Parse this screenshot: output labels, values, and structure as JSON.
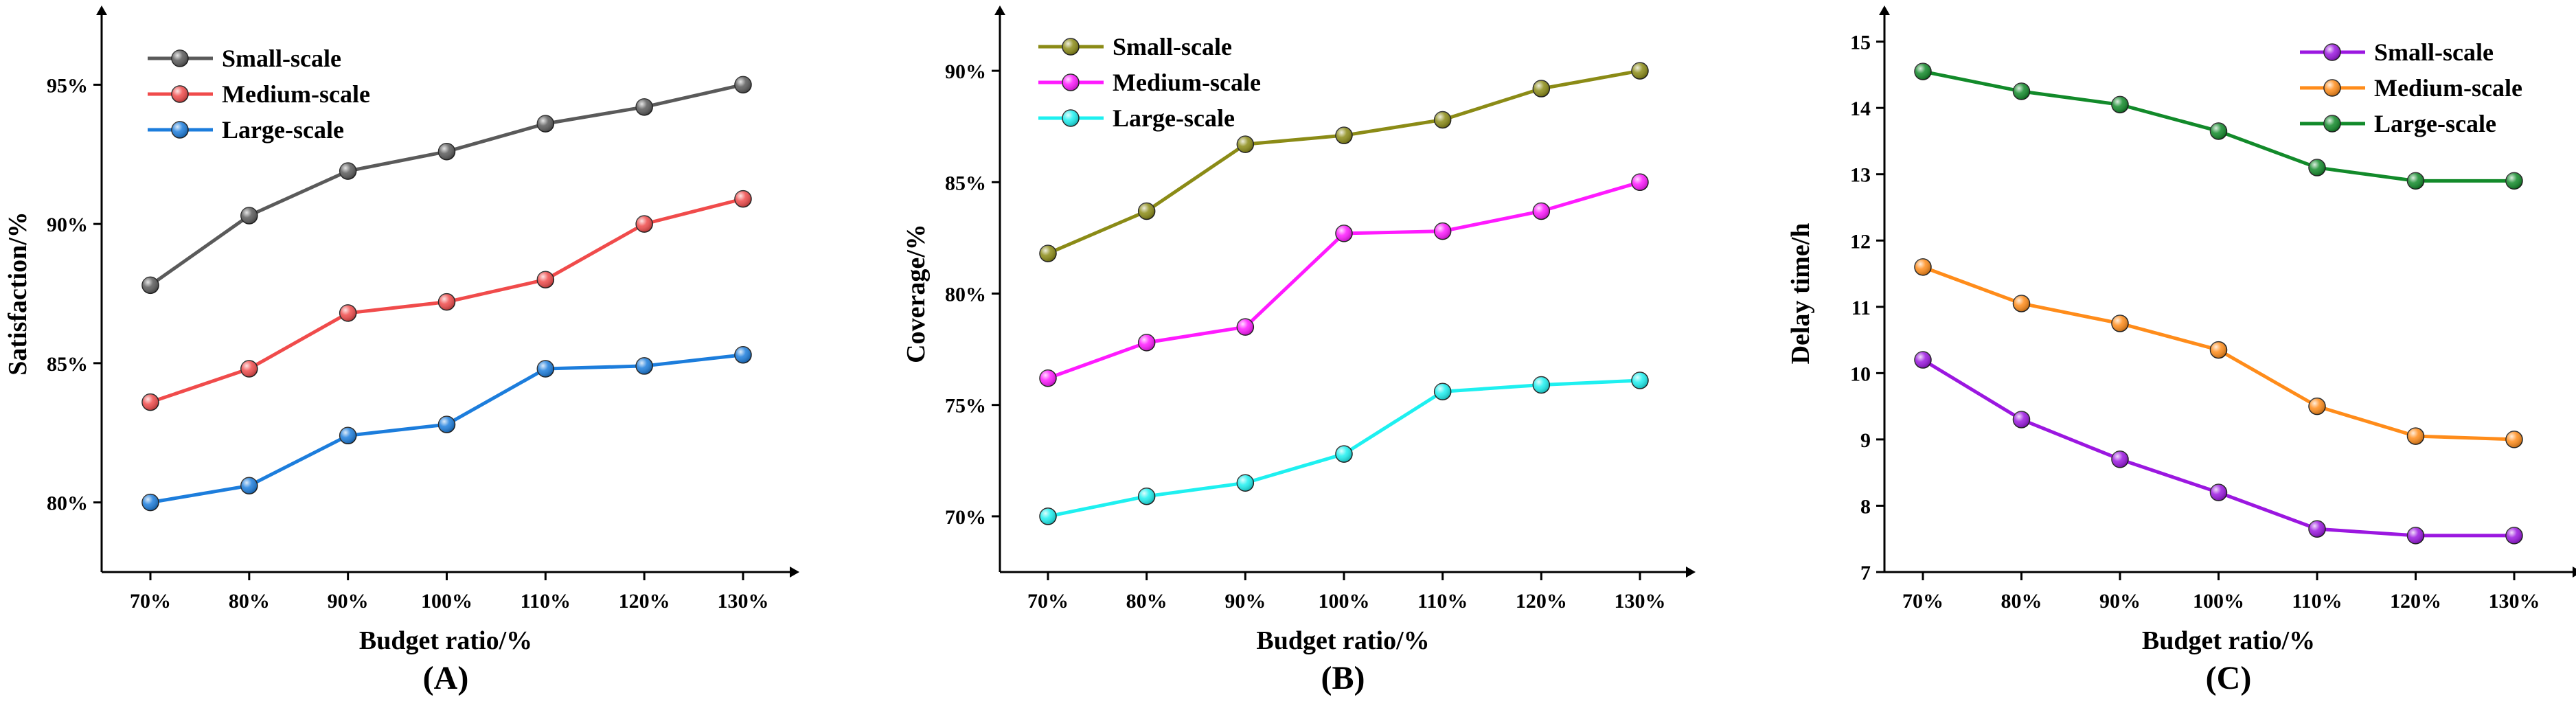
{
  "chart_data": [
    {
      "type": "line",
      "panel_label": "(A)",
      "xlabel": "Budget ratio/%",
      "ylabel": "Satisfaction/%",
      "categories": [
        "70%",
        "80%",
        "90%",
        "100%",
        "110%",
        "120%",
        "130%"
      ],
      "ylim": [
        77.5,
        97.5
      ],
      "yticks": [
        80,
        85,
        90,
        95
      ],
      "ytick_labels": [
        "80%",
        "85%",
        "90%",
        "95%"
      ],
      "legend_position": "top-left",
      "series": [
        {
          "name": "Small-scale",
          "color": "#5a5a5a",
          "values": [
            87.8,
            90.3,
            91.9,
            92.6,
            93.6,
            94.2,
            95.0
          ]
        },
        {
          "name": "Medium-scale",
          "color": "#f04b4b",
          "values": [
            83.6,
            84.8,
            86.8,
            87.2,
            88.0,
            90.0,
            90.9
          ]
        },
        {
          "name": "Large-scale",
          "color": "#1c7ddc",
          "values": [
            80.0,
            80.6,
            82.4,
            82.8,
            84.8,
            84.9,
            85.3
          ]
        }
      ]
    },
    {
      "type": "line",
      "panel_label": "(B)",
      "xlabel": "Budget ratio/%",
      "ylabel": "Coverage/%",
      "categories": [
        "70%",
        "80%",
        "90%",
        "100%",
        "110%",
        "120%",
        "130%"
      ],
      "ylim": [
        67.5,
        92.5
      ],
      "yticks": [
        70,
        75,
        80,
        85,
        90
      ],
      "ytick_labels": [
        "70%",
        "75%",
        "80%",
        "85%",
        "90%"
      ],
      "legend_position": "top-left",
      "series": [
        {
          "name": "Small-scale",
          "color": "#8b8b16",
          "values": [
            81.8,
            83.7,
            86.7,
            87.1,
            87.8,
            89.2,
            90.0
          ]
        },
        {
          "name": "Medium-scale",
          "color": "#ff1aff",
          "values": [
            76.2,
            77.8,
            78.5,
            82.7,
            82.8,
            83.7,
            85.0
          ]
        },
        {
          "name": "Large-scale",
          "color": "#1ef0f0",
          "values": [
            70.0,
            70.9,
            71.5,
            72.8,
            75.6,
            75.9,
            76.1
          ]
        }
      ]
    },
    {
      "type": "line",
      "panel_label": "(C)",
      "xlabel": "Budget ratio/%",
      "ylabel": "Delay time/h",
      "categories": [
        "70%",
        "80%",
        "90%",
        "100%",
        "110%",
        "120%",
        "130%"
      ],
      "ylim": [
        7,
        15.4
      ],
      "yticks": [
        7,
        8,
        9,
        10,
        11,
        12,
        13,
        14,
        15
      ],
      "ytick_labels": [
        "7",
        "8",
        "9",
        "10",
        "11",
        "12",
        "13",
        "14",
        "15"
      ],
      "legend_position": "top-right",
      "series": [
        {
          "name": "Small-scale",
          "color": "#9b17e0",
          "values": [
            10.2,
            9.3,
            8.7,
            8.2,
            7.65,
            7.55,
            7.55
          ]
        },
        {
          "name": "Medium-scale",
          "color": "#ff8c1a",
          "values": [
            11.6,
            11.05,
            10.75,
            10.35,
            9.5,
            9.05,
            9.0
          ]
        },
        {
          "name": "Large-scale",
          "color": "#128a2a",
          "values": [
            14.55,
            14.25,
            14.05,
            13.65,
            13.1,
            12.9,
            12.9
          ]
        }
      ]
    }
  ]
}
